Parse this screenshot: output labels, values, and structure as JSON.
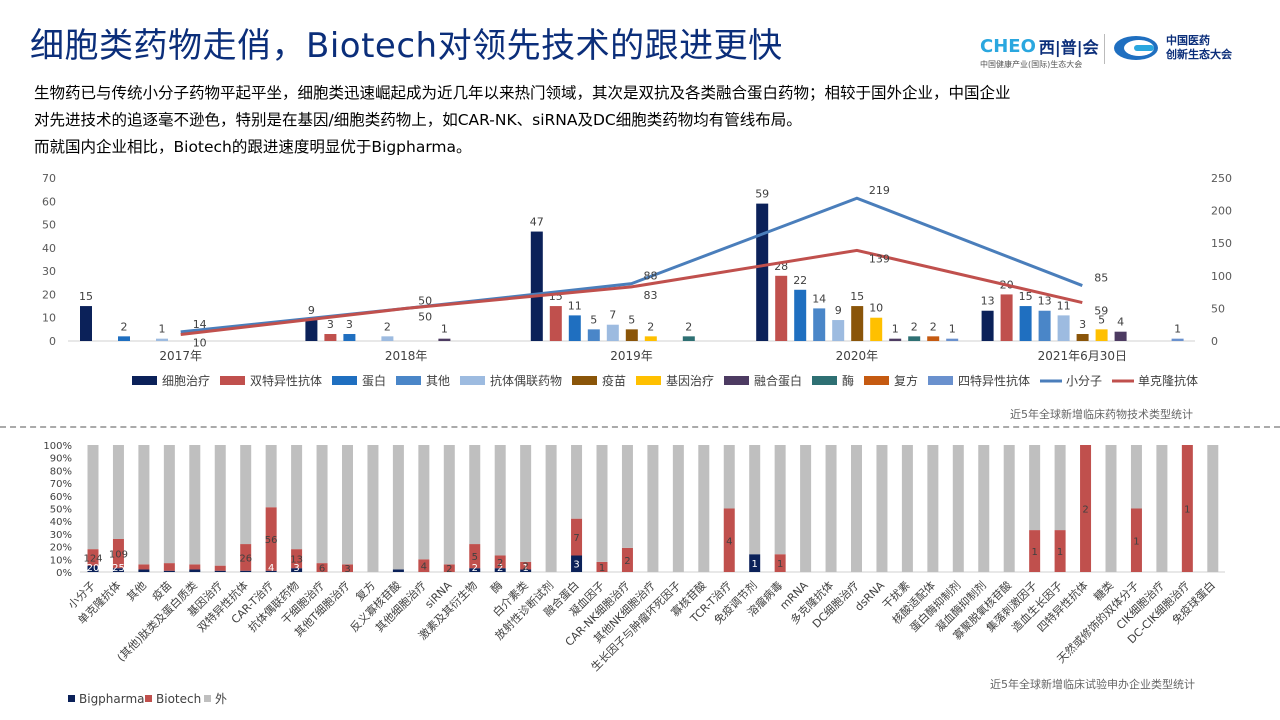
{
  "title": "细胞类药物走俏，Biotech对领先技术的跟进更快",
  "logos": {
    "org1_main": "CHEO",
    "org1_cn": "西|普|会",
    "org1_sub": "中国健康产业(国际)生态大会",
    "org2_line1": "中国医药",
    "org2_line2": "创新生态大会"
  },
  "paragraph": {
    "line1": "生物药已与传统小分子药物平起平坐，细胞类迅速崛起成为近几年以来热门领域，其次是双抗及各类融合蛋白药物；相较于国外企业，中国企业",
    "line2": "对先进技术的追逐毫不逊色，特别是在基因/细胞类药物上，如CAR-NK、siRNA及DC细胞类药物均有管线布局。",
    "line3": "而就国内企业相比，Biotech的跟进速度明显优于Bigpharma。"
  },
  "colors": {
    "细胞治疗": "#0b2159",
    "双特异性抗体": "#c0504d",
    "蛋白": "#1f6fc0",
    "其他": "#4a86c8",
    "抗体偶联药物": "#9dbbe0",
    "疫苗": "#8a5509",
    "基因治疗": "#ffc000",
    "融合蛋白": "#4d3b62",
    "酶": "#2e7073",
    "复方": "#c55a11",
    "四特异性抗体": "#6a91ce",
    "小分子": "#4a7ebb",
    "单克隆抗体": "#c0504d",
    "Bigpharma": "#0b2159",
    "Biotech": "#c0504d",
    "外": "#bfbfbf"
  },
  "chart_data": [
    {
      "type": "bar",
      "caption": "近5年全球新增临床药物技术类型统计",
      "categories": [
        "2017年",
        "2018年",
        "2019年",
        "2020年",
        "2021年6月30日"
      ],
      "ylim_left": [
        0,
        70
      ],
      "yticks_left": [
        "0",
        "10",
        "20",
        "30",
        "40",
        "50",
        "60",
        "70"
      ],
      "ylim_right": [
        0,
        250
      ],
      "yticks_right": [
        "0",
        "50",
        "100",
        "150",
        "200",
        "250"
      ],
      "series": [
        {
          "name": "细胞治疗",
          "values": [
            15,
            9,
            47,
            59,
            13
          ]
        },
        {
          "name": "双特异性抗体",
          "values": [
            null,
            3,
            15,
            28,
            20
          ]
        },
        {
          "name": "蛋白",
          "values": [
            2,
            3,
            11,
            22,
            15
          ]
        },
        {
          "name": "其他",
          "values": [
            null,
            null,
            5,
            14,
            13
          ]
        },
        {
          "name": "抗体偶联药物",
          "values": [
            1,
            2,
            7,
            9,
            11
          ]
        },
        {
          "name": "疫苗",
          "values": [
            null,
            null,
            5,
            15,
            3
          ]
        },
        {
          "name": "基因治疗",
          "values": [
            null,
            null,
            2,
            10,
            5
          ]
        },
        {
          "name": "融合蛋白",
          "values": [
            null,
            1,
            null,
            1,
            4
          ]
        },
        {
          "name": "酶",
          "values": [
            null,
            null,
            2,
            2,
            null
          ]
        },
        {
          "name": "复方",
          "values": [
            null,
            null,
            null,
            2,
            null
          ]
        },
        {
          "name": "四特异性抗体",
          "values": [
            null,
            null,
            null,
            1,
            1
          ]
        }
      ],
      "line_series": [
        {
          "name": "小分子",
          "axis": "right",
          "values": [
            14,
            50,
            88,
            219,
            85
          ]
        },
        {
          "name": "单克隆抗体",
          "axis": "right",
          "values": [
            10,
            50,
            83,
            139,
            59
          ]
        }
      ],
      "legend": [
        "细胞治疗",
        "双特异性抗体",
        "蛋白",
        "其他",
        "抗体偶联药物",
        "疫苗",
        "基因治疗",
        "融合蛋白",
        "酶",
        "复方",
        "四特异性抗体",
        "小分子",
        "单克隆抗体"
      ]
    },
    {
      "type": "stacked_bar_percent",
      "caption": "近5年全球新增临床试验申办企业类型统计",
      "yticks": [
        "0%",
        "10%",
        "20%",
        "30%",
        "40%",
        "50%",
        "60%",
        "70%",
        "80%",
        "90%",
        "100%"
      ],
      "categories": [
        "小分子",
        "单克隆抗体",
        "其他",
        "疫苗",
        "(其他)肽类及蛋白质类",
        "基因治疗",
        "双特异性抗体",
        "CAR-T治疗",
        "抗体偶联药物",
        "干细胞治疗",
        "其他T细胞治疗",
        "复方",
        "反义寡核苷酸",
        "其他细胞治疗",
        "siRNA",
        "激素及其衍生物",
        "酶",
        "白介素类",
        "放射性诊断试剂",
        "融合蛋白",
        "凝血因子",
        "CAR-NK细胞治疗",
        "其他NK细胞治疗",
        "生长因子与肿瘤坏死因子",
        "寡核苷酸",
        "TCR-T治疗",
        "免疫调节剂",
        "溶瘤病毒",
        "mRNA",
        "多克隆抗体",
        "DC细胞治疗",
        "dsRNA",
        "干扰素",
        "核酸适配体",
        "蛋白酶抑制剂",
        "凝血酶抑制剂",
        "寡聚脱氧核苷酸",
        "集落刺激因子",
        "造血生长因子",
        "四特异性抗体",
        "糖类",
        "天然或修饰的双体分子",
        "CIK细胞治疗",
        "DC-CIK细胞治疗",
        "免疫球蛋白"
      ],
      "series": [
        {
          "name": "Bigpharma",
          "pct": [
            5,
            3,
            2,
            1,
            2,
            1,
            1,
            1,
            3,
            0,
            0,
            0,
            2,
            0,
            0,
            3,
            3,
            2,
            0,
            13,
            0,
            0,
            0,
            0,
            0,
            0,
            14,
            0,
            0,
            0,
            0,
            0,
            0,
            0,
            0,
            0,
            0,
            0,
            0,
            0,
            0,
            0,
            0,
            0,
            0
          ],
          "labels": [
            "20",
            "25",
            "",
            "",
            "",
            "",
            "",
            "4",
            "3",
            "",
            "",
            "",
            "",
            "",
            "",
            "2",
            "2",
            "1",
            "",
            "3",
            "",
            "",
            "",
            "",
            "",
            "",
            "1",
            "",
            "",
            "",
            "",
            "",
            "",
            "",
            "",
            "",
            "",
            "",
            "",
            "",
            "",
            "",
            "",
            "",
            ""
          ]
        },
        {
          "name": "Biotech",
          "pct": [
            13,
            23,
            4,
            6,
            4,
            4,
            21,
            50,
            15,
            7,
            6,
            0,
            0,
            10,
            6,
            19,
            10,
            6,
            0,
            29,
            8,
            19,
            0,
            0,
            0,
            50,
            0,
            14,
            0,
            0,
            0,
            0,
            0,
            0,
            0,
            0,
            0,
            33,
            33,
            100,
            0,
            50,
            0,
            100,
            0
          ],
          "labels": [
            "124",
            "109",
            "",
            "",
            "",
            "",
            "26",
            "56",
            "13",
            "6",
            "3",
            "",
            "",
            "4",
            "2",
            "5",
            "2",
            "2",
            "",
            "7",
            "1",
            "2",
            "",
            "",
            "",
            "4",
            "",
            "1",
            "",
            "",
            "",
            "",
            "",
            "",
            "",
            "",
            "",
            "1",
            "1",
            "2",
            "",
            "1",
            "",
            "1",
            ""
          ]
        },
        {
          "name": "外",
          "pct": "remainder to 100%"
        }
      ],
      "legend": [
        "Bigpharma",
        "Biotech",
        "外"
      ]
    }
  ]
}
